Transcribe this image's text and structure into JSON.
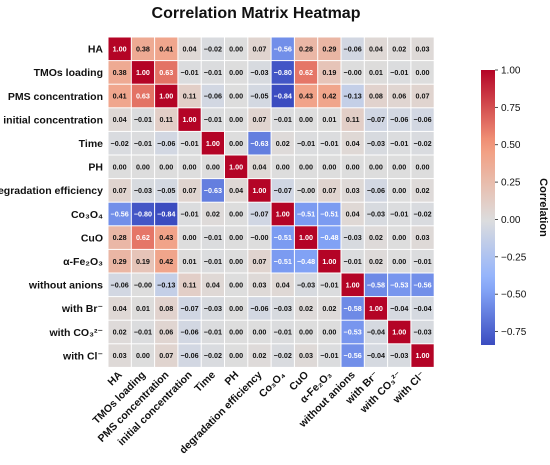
{
  "chart_data": {
    "type": "heatmap",
    "title": "Correlation Matrix Heatmap",
    "labels": [
      "HA",
      "TMOs loading",
      "PMS concentration",
      "initial concentration",
      "Time",
      "PH",
      "degradation efficiency",
      "Co₃O₄",
      "CuO",
      "α-Fe₂O₃",
      "without anions",
      "with Br⁻",
      "with CO₃²⁻",
      "with Cl⁻"
    ],
    "values": [
      [
        1.0,
        0.38,
        0.41,
        0.04,
        -0.02,
        0.0,
        0.07,
        -0.56,
        0.28,
        0.29,
        -0.06,
        0.04,
        0.02,
        0.03
      ],
      [
        0.38,
        1.0,
        0.63,
        -0.01,
        -0.01,
        0.0,
        -0.03,
        -0.8,
        0.62,
        0.19,
        -0.0,
        0.01,
        -0.01,
        0.0
      ],
      [
        0.41,
        0.63,
        1.0,
        0.11,
        -0.06,
        0.0,
        -0.05,
        -0.84,
        0.43,
        0.42,
        -0.13,
        0.08,
        0.06,
        0.07
      ],
      [
        0.04,
        -0.01,
        0.11,
        1.0,
        -0.01,
        0.0,
        0.07,
        -0.01,
        0.0,
        0.01,
        0.11,
        -0.07,
        -0.06,
        -0.06
      ],
      [
        -0.02,
        -0.01,
        -0.06,
        -0.01,
        1.0,
        0.0,
        -0.63,
        0.02,
        -0.01,
        -0.01,
        0.04,
        -0.03,
        -0.01,
        -0.02
      ],
      [
        0.0,
        0.0,
        0.0,
        0.0,
        0.0,
        1.0,
        0.04,
        0.0,
        0.0,
        0.0,
        0.0,
        0.0,
        0.0,
        0.0
      ],
      [
        0.07,
        -0.03,
        -0.05,
        0.07,
        -0.63,
        0.04,
        1.0,
        -0.07,
        -0.0,
        0.07,
        0.03,
        -0.06,
        0.0,
        0.02
      ],
      [
        -0.56,
        -0.8,
        -0.84,
        -0.01,
        0.02,
        0.0,
        -0.07,
        1.0,
        -0.51,
        -0.51,
        0.04,
        -0.03,
        -0.01,
        -0.02
      ],
      [
        0.28,
        0.62,
        0.43,
        0.0,
        -0.01,
        0.0,
        -0.0,
        -0.51,
        1.0,
        -0.48,
        -0.03,
        0.02,
        0.0,
        0.03
      ],
      [
        0.29,
        0.19,
        0.42,
        0.01,
        -0.01,
        0.0,
        0.07,
        -0.51,
        -0.48,
        1.0,
        -0.01,
        0.02,
        0.0,
        -0.01
      ],
      [
        -0.06,
        -0.0,
        -0.13,
        0.11,
        0.04,
        0.0,
        0.03,
        0.04,
        -0.03,
        -0.01,
        1.0,
        -0.58,
        -0.53,
        -0.56
      ],
      [
        0.04,
        0.01,
        0.08,
        -0.07,
        -0.03,
        0.0,
        -0.06,
        -0.03,
        0.02,
        0.02,
        -0.58,
        1.0,
        -0.04,
        -0.04
      ],
      [
        0.02,
        -0.01,
        0.06,
        -0.06,
        -0.01,
        0.0,
        0.0,
        -0.01,
        0.0,
        0.0,
        -0.53,
        -0.04,
        1.0,
        -0.03
      ],
      [
        0.03,
        0.0,
        0.07,
        -0.06,
        -0.02,
        0.0,
        0.02,
        -0.02,
        0.03,
        -0.01,
        -0.56,
        -0.04,
        -0.03,
        1.0
      ]
    ],
    "colorbar": {
      "label": "Correlation",
      "ticks": [
        "1.00",
        "0.75",
        "0.50",
        "0.25",
        "0.00",
        "−0.25",
        "−0.50",
        "−0.75"
      ],
      "tick_values": [
        1.0,
        0.75,
        0.5,
        0.25,
        0.0,
        -0.25,
        -0.5,
        -0.75
      ],
      "range": [
        -0.84,
        1.0
      ],
      "colormap": "coolwarm"
    },
    "colors": {
      "low": "#3b4cc0",
      "mid": "#dddddd",
      "high": "#b40426"
    },
    "annotations": "numeric value in each cell, two decimals"
  }
}
